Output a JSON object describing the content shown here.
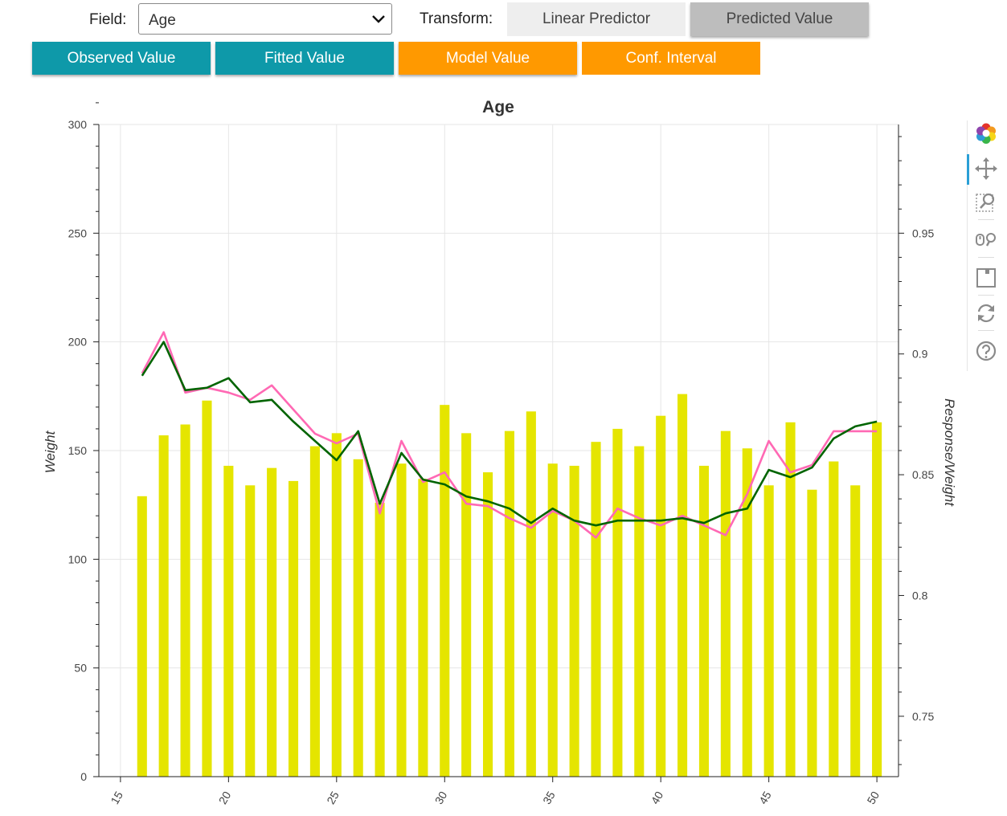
{
  "controls": {
    "field_label": "Field:",
    "field_value": "Age",
    "transform_label": "Transform:",
    "transform_options": [
      "Linear Predictor",
      "Predicted Value"
    ],
    "transform_selected": "Predicted Value",
    "toggles": [
      "Observed Value",
      "Fitted Value",
      "Model Value",
      "Conf. Interval"
    ]
  },
  "toolbar": {
    "tools": [
      "bokeh-logo-icon",
      "pan-icon",
      "box-zoom-icon",
      "wheel-zoom-icon",
      "save-icon",
      "reset-icon",
      "help-icon"
    ]
  },
  "colors": {
    "bars": "#e5e500",
    "observed": "#ff69b4",
    "fitted": "#006400",
    "teal": "#0e99a9",
    "orange": "#ff9900"
  },
  "chart_data": {
    "type": "bar",
    "title": "Age",
    "xlabel": "",
    "ylabel": "Weight",
    "y2label": "Response/Weight",
    "xlim": [
      14,
      51
    ],
    "ylim": [
      0,
      300
    ],
    "y2lim": [
      0.725,
      0.995
    ],
    "xticks": [
      15,
      20,
      25,
      30,
      35,
      40,
      45,
      50
    ],
    "yticks": [
      0,
      50,
      100,
      150,
      200,
      250,
      300
    ],
    "y2ticks": [
      0.75,
      0.8,
      0.85,
      0.9,
      0.95
    ],
    "x": [
      16,
      17,
      18,
      19,
      20,
      21,
      22,
      23,
      24,
      25,
      26,
      27,
      28,
      29,
      30,
      31,
      32,
      33,
      34,
      35,
      36,
      37,
      38,
      39,
      40,
      41,
      42,
      43,
      44,
      45,
      46,
      47,
      48,
      49,
      50
    ],
    "series": [
      {
        "type": "bar",
        "axis": "left",
        "values": [
          129,
          157,
          162,
          173,
          143,
          134,
          142,
          136,
          152,
          158,
          146,
          126,
          144,
          137,
          171,
          158,
          140,
          159,
          168,
          144,
          143,
          154,
          160,
          152,
          166,
          176,
          143,
          159,
          151,
          134,
          163,
          132,
          145,
          134,
          163
        ]
      },
      {
        "type": "line",
        "axis": "right",
        "color": "#ff69b4",
        "values": [
          0.892,
          0.909,
          0.884,
          0.886,
          0.884,
          0.881,
          0.887,
          0.877,
          0.867,
          0.863,
          0.867,
          0.834,
          0.864,
          0.847,
          0.851,
          0.838,
          0.837,
          0.832,
          0.828,
          0.835,
          0.831,
          0.824,
          0.836,
          0.832,
          0.829,
          0.833,
          0.829,
          0.825,
          0.842,
          0.864,
          0.851,
          0.854,
          0.868,
          0.868,
          0.868
        ]
      },
      {
        "type": "line",
        "axis": "right",
        "color": "#006400",
        "values": [
          0.891,
          0.905,
          0.885,
          0.886,
          0.89,
          0.88,
          0.881,
          0.872,
          0.864,
          0.856,
          0.868,
          0.838,
          0.859,
          0.848,
          0.846,
          0.841,
          0.839,
          0.836,
          0.83,
          0.836,
          0.831,
          0.829,
          0.831,
          0.831,
          0.831,
          0.832,
          0.83,
          0.834,
          0.836,
          0.852,
          0.849,
          0.853,
          0.865,
          0.87,
          0.872
        ]
      }
    ],
    "grid": true
  }
}
